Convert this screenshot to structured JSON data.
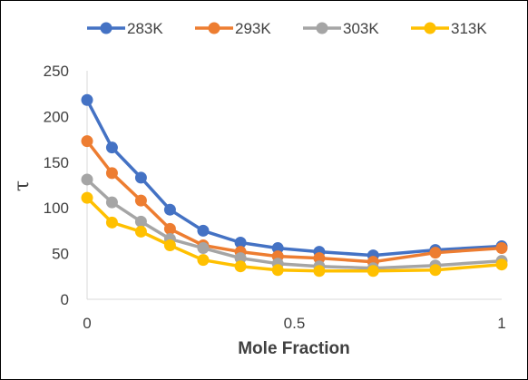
{
  "chart_data": {
    "type": "line",
    "title": "",
    "xlabel": "Mole Fraction",
    "ylabel": "τ",
    "xlim": [
      0,
      1
    ],
    "ylim": [
      0,
      250
    ],
    "x_ticks": [
      "0",
      "0.5",
      "1"
    ],
    "y_ticks": [
      "0",
      "50",
      "100",
      "150",
      "200",
      "250"
    ],
    "grid": false,
    "legend_position": "top",
    "x": [
      0,
      0.06,
      0.13,
      0.2,
      0.28,
      0.37,
      0.46,
      0.56,
      0.69,
      0.84,
      1.0
    ],
    "series": [
      {
        "name": "283K",
        "color": "#4472C4",
        "values": [
          218,
          166,
          133,
          98,
          75,
          62,
          56,
          52,
          48,
          54,
          58
        ]
      },
      {
        "name": "293K",
        "color": "#ED7D31",
        "values": [
          173,
          138,
          108,
          77,
          59,
          52,
          47,
          45,
          41,
          51,
          56
        ]
      },
      {
        "name": "303K",
        "color": "#A5A5A5",
        "values": [
          131,
          106,
          85,
          66,
          56,
          45,
          39,
          36,
          34,
          37,
          42
        ]
      },
      {
        "name": "313K",
        "color": "#FFC000",
        "values": [
          111,
          84,
          74,
          59,
          43,
          36,
          32,
          31,
          31,
          32,
          38
        ]
      }
    ]
  }
}
